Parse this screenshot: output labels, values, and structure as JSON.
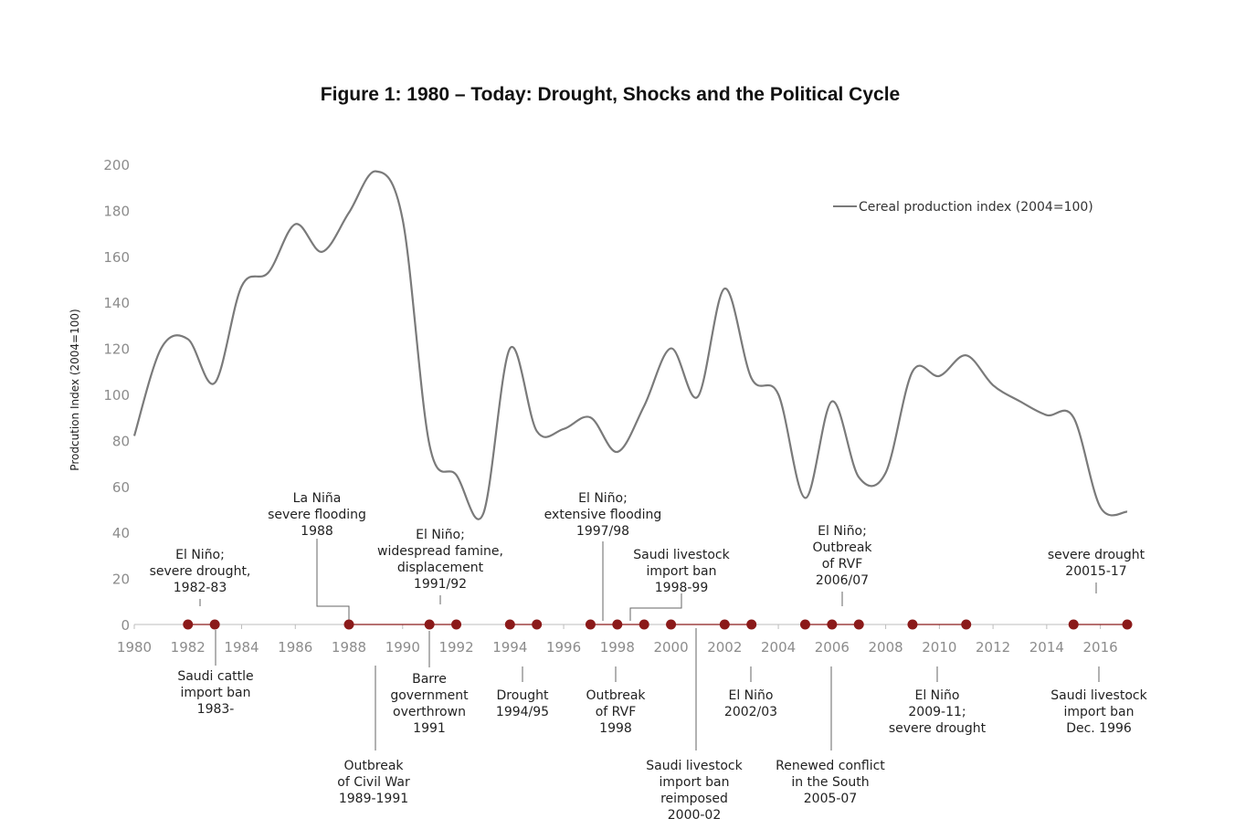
{
  "chart_data": {
    "type": "line",
    "title": "Figure 1: 1980 – Today: Drought, Shocks and the Political Cycle",
    "xlabel": "",
    "ylabel": "Prodcution Index  (2004=100)",
    "xlim": [
      1980,
      2017
    ],
    "ylim": [
      0,
      200
    ],
    "x_ticks": [
      1980,
      1982,
      1984,
      1986,
      1988,
      1990,
      1992,
      1994,
      1996,
      1998,
      2000,
      2002,
      2004,
      2006,
      2008,
      2010,
      2012,
      2014,
      2016
    ],
    "y_ticks": [
      0,
      20,
      40,
      60,
      80,
      100,
      120,
      140,
      160,
      180,
      200
    ],
    "legend": {
      "position": "top-right",
      "label": "Cereal production index (2004=100)"
    },
    "series": [
      {
        "name": "Cereal production index (2004=100)",
        "color": "#7a7a7a",
        "x": [
          1980,
          1981,
          1982,
          1983,
          1984,
          1985,
          1986,
          1987,
          1988,
          1989,
          1990,
          1991,
          1992,
          1993,
          1994,
          1995,
          1996,
          1997,
          1998,
          1999,
          2000,
          2001,
          2002,
          2003,
          2004,
          2005,
          2006,
          2007,
          2008,
          2009,
          2010,
          2011,
          2012,
          2013,
          2014,
          2015,
          2016,
          2017
        ],
        "values": [
          82,
          120,
          124,
          105,
          147,
          153,
          174,
          162,
          179,
          197,
          176,
          78,
          65,
          48,
          120,
          84,
          85,
          90,
          75,
          95,
          120,
          99,
          146,
          107,
          100,
          55,
          97,
          64,
          66,
          110,
          108,
          117,
          104,
          97,
          91,
          90,
          51,
          49
        ]
      }
    ],
    "timeline": {
      "color": "#8b1a1a",
      "spans": [
        [
          1982,
          1983
        ],
        [
          1988,
          1992
        ],
        [
          1994,
          1995
        ],
        [
          1997,
          1999
        ],
        [
          2000,
          2003
        ],
        [
          2005,
          2007
        ],
        [
          2009,
          2011
        ],
        [
          2015,
          2017
        ]
      ],
      "points": [
        1982,
        1983,
        1988,
        1991,
        1992,
        1994,
        1995,
        1997,
        1998,
        1999,
        2000,
        2002,
        2003,
        2005,
        2006,
        2007,
        2009,
        2011,
        2015,
        2017
      ]
    },
    "annotations": {
      "above": [
        {
          "id": "el-nino-1982",
          "year": 1982.4,
          "lines": [
            "El Niño;",
            "severe drought,",
            "1982-83"
          ]
        },
        {
          "id": "la-nina-1988",
          "year": 1988,
          "lines": [
            "La Niña",
            "severe flooding",
            "1988"
          ]
        },
        {
          "id": "el-nino-1991",
          "year": 1991.5,
          "lines": [
            "El Niño;",
            "widespread famine,",
            "displacement",
            "1991/92"
          ]
        },
        {
          "id": "el-nino-1997",
          "year": 1997.5,
          "lines": [
            "El Niño;",
            "extensive flooding",
            "1997/98"
          ]
        },
        {
          "id": "saudi-ban-1998",
          "year": 1998.5,
          "lines": [
            "Saudi livestock",
            "import ban",
            "1998-99"
          ]
        },
        {
          "id": "el-nino-2006",
          "year": 2006.5,
          "lines": [
            "El Niño;",
            "Outbreak",
            "of RVF",
            "2006/07"
          ]
        },
        {
          "id": "drought-2015",
          "year": 2016,
          "lines": [
            "severe drought",
            "20015-17"
          ]
        }
      ],
      "below": [
        {
          "id": "saudi-cattle-1983",
          "year": 1983,
          "lines": [
            "Saudi cattle",
            "import ban",
            "1983-"
          ]
        },
        {
          "id": "civil-war-1989",
          "year": 1989,
          "lines": [
            "Outbreak",
            "of Civil War",
            "1989-1991"
          ]
        },
        {
          "id": "barre-1991",
          "year": 1991,
          "lines": [
            "Barre",
            "government",
            "overthrown",
            "1991"
          ]
        },
        {
          "id": "drought-1994",
          "year": 1994.5,
          "lines": [
            "Drought",
            "1994/95"
          ]
        },
        {
          "id": "rvf-1998",
          "year": 1998,
          "lines": [
            "Outbreak",
            "of RVF",
            "1998"
          ]
        },
        {
          "id": "saudi-reimposed-2000",
          "year": 2001,
          "lines": [
            "Saudi livestock",
            "import ban",
            "reimposed",
            "2000-02"
          ]
        },
        {
          "id": "el-nino-2002",
          "year": 2003,
          "lines": [
            "El Niño",
            "2002/03"
          ]
        },
        {
          "id": "conflict-2005",
          "year": 2006,
          "lines": [
            "Renewed conflict",
            "in the South",
            "2005-07"
          ]
        },
        {
          "id": "el-nino-2009",
          "year": 2010,
          "lines": [
            "El Niño",
            "2009-11;",
            "severe drought"
          ]
        },
        {
          "id": "saudi-ban-1996",
          "year": 2016,
          "lines": [
            "Saudi livestock",
            "import ban",
            "Dec. 1996"
          ]
        }
      ]
    }
  }
}
